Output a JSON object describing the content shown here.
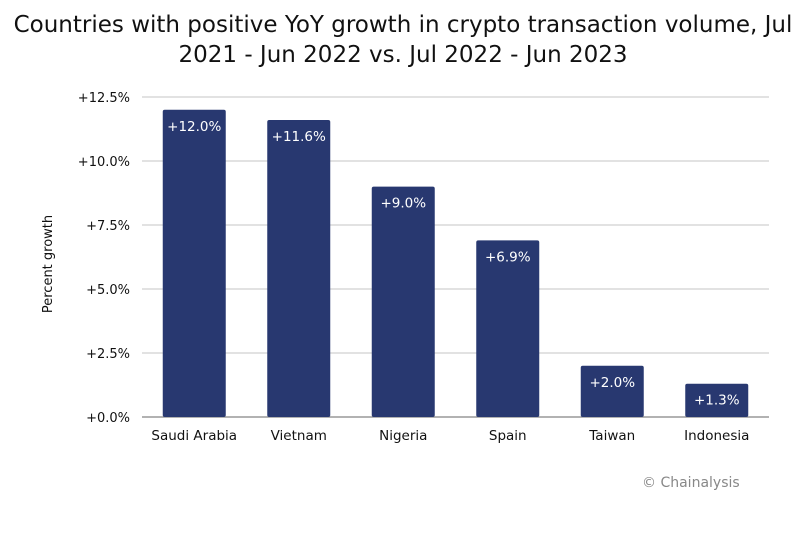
{
  "chart_data": {
    "type": "bar",
    "title": "Countries with positive YoY growth in crypto transaction volume, Jul 2021 - Jun 2022 vs. Jul 2022 - Jun 2023",
    "xlabel": "",
    "ylabel": "Percent growth",
    "categories": [
      "Saudi Arabia",
      "Vietnam",
      "Nigeria",
      "Spain",
      "Taiwan",
      "Indonesia"
    ],
    "values": [
      12.0,
      11.6,
      9.0,
      6.9,
      2.0,
      1.3
    ],
    "data_labels": [
      "+12.0%",
      "+11.6%",
      "+9.0%",
      "+6.9%",
      "+2.0%",
      "+1.3%"
    ],
    "ylim": [
      0,
      12.5
    ],
    "yticks": [
      0,
      2.5,
      5.0,
      7.5,
      10.0,
      12.5
    ],
    "ytick_labels": [
      "+0.0%",
      "+2.5%",
      "+5.0%",
      "+7.5%",
      "+10.0%",
      "+12.5%"
    ],
    "grid": true,
    "bar_color": "#283870",
    "grid_color": "#d9d9d9"
  },
  "credit": "© Chainalysis"
}
